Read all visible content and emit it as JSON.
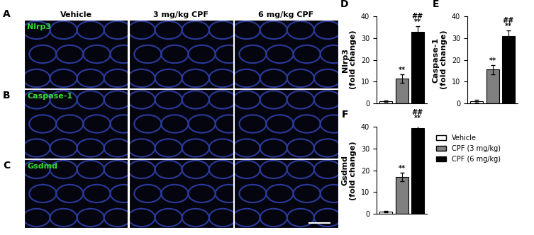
{
  "image_panels": {
    "letters": [
      "A",
      "B",
      "C"
    ],
    "columns": [
      "Vehicle",
      "3 mg/kg CPF",
      "6 mg/kg CPF"
    ],
    "rows": [
      "Nlrp3",
      "Caspase-1",
      "Gsdmd"
    ]
  },
  "chart_data": [
    {
      "type": "bar",
      "panel_label": "D",
      "y_label": "Nlrp3\n(fold change)",
      "categories": [
        null,
        null,
        null
      ],
      "values": [
        1,
        11.5,
        33
      ],
      "errors": [
        0.4,
        2,
        2.5
      ],
      "colors": [
        "#ffffff",
        "#808080",
        "#000000"
      ],
      "annotations": [
        [],
        [
          "**"
        ],
        [
          "##",
          "**"
        ]
      ],
      "ylim": [
        0,
        40
      ],
      "yticks": [
        0,
        10,
        20,
        30,
        40
      ]
    },
    {
      "type": "bar",
      "panel_label": "E",
      "y_label": "Caspase-1\n(fold change)",
      "categories": [
        null,
        null,
        null
      ],
      "values": [
        1,
        15.5,
        31
      ],
      "errors": [
        0.8,
        2,
        2.5
      ],
      "colors": [
        "#ffffff",
        "#808080",
        "#000000"
      ],
      "annotations": [
        [],
        [
          "**"
        ],
        [
          "##",
          "**"
        ]
      ],
      "ylim": [
        0,
        40
      ],
      "yticks": [
        0,
        10,
        20,
        30,
        40
      ]
    },
    {
      "type": "bar",
      "panel_label": "F",
      "y_label": "Gsdmd\n(fold change)",
      "categories": [
        null
      ],
      "series": [
        {
          "name": "Vehicle",
          "color": "#ffffff",
          "values": [
            1
          ],
          "errors": [
            0.3
          ]
        },
        {
          "name": "CPF (3 mg/kg)",
          "color": "#808080",
          "values": [
            17
          ],
          "errors": [
            2
          ]
        },
        {
          "name": "CPF (6 mg/kg)",
          "color": "#000000",
          "values": [
            39.5
          ],
          "errors": [
            2.5
          ]
        }
      ],
      "annotations": [
        [],
        [
          "**"
        ],
        [
          "##",
          "**"
        ]
      ],
      "legend": "right",
      "ylim": [
        0,
        40
      ],
      "yticks": [
        0,
        10,
        20,
        30,
        40
      ]
    }
  ]
}
